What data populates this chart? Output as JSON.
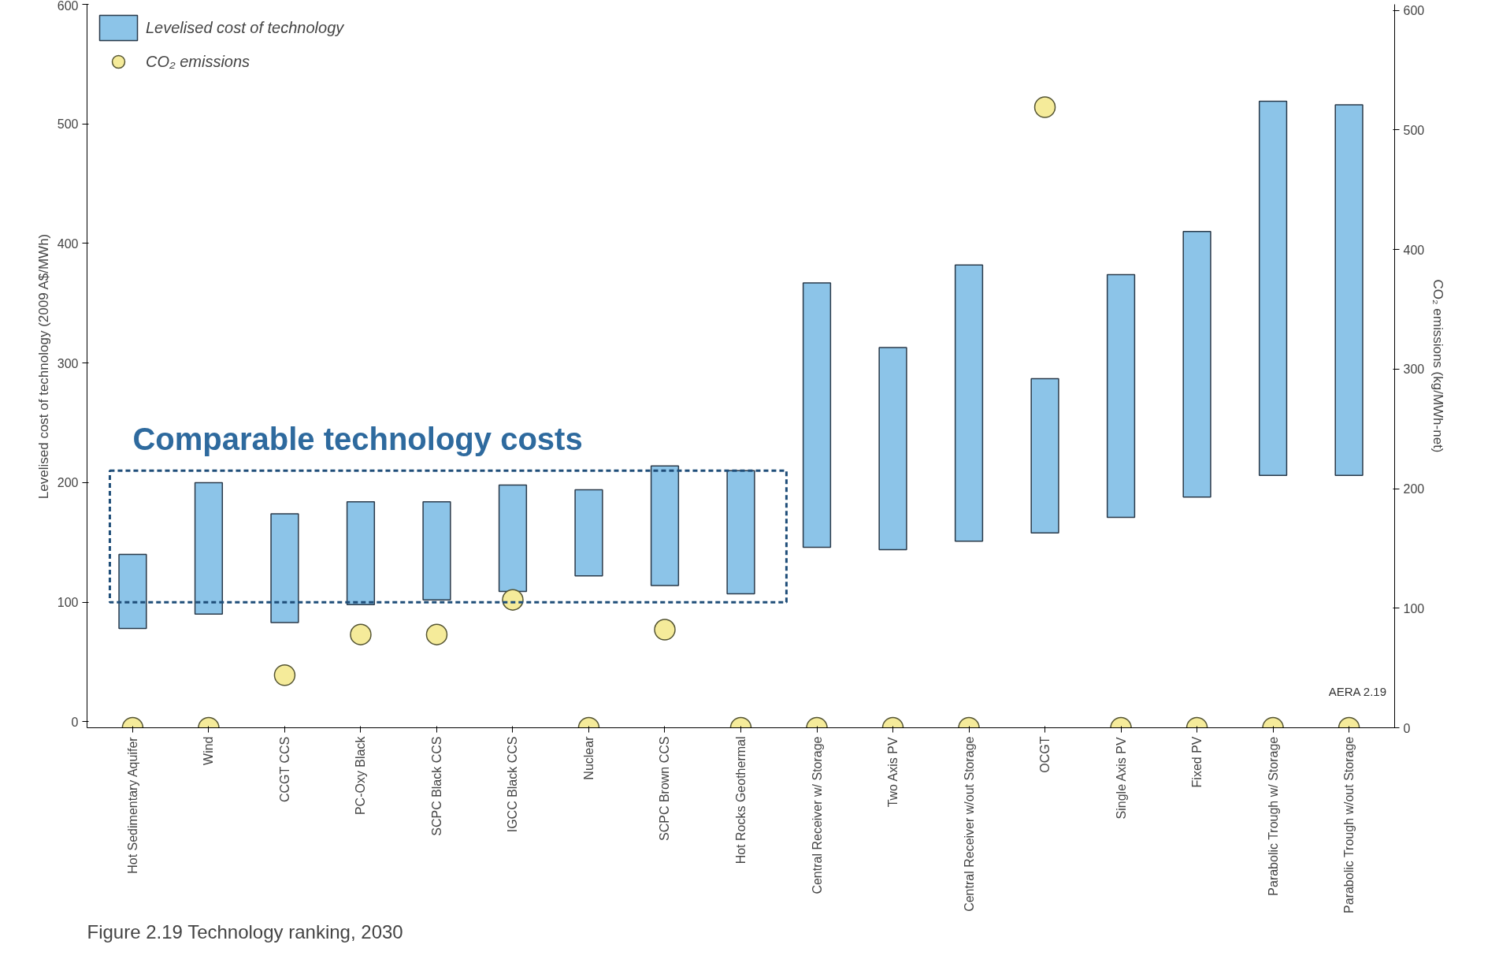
{
  "chart_data": {
    "type": "bar",
    "title": "Figure 2.19 Technology ranking, 2030",
    "ylabel": "Levelised cost of technology (2009 A$/MWh)",
    "y2label": "CO₂ emissions (kg/MWh-net)",
    "categories": [
      "Hot Sedimentary Aquifer",
      "Wind",
      "CCGT CCS",
      "PC-Oxy Black",
      "SCPC Black CCS",
      "IGCC Black CCS",
      "Nuclear",
      "SCPC Brown CCS",
      "Hot Rocks Geothermal",
      "Central Receiver w/ Storage",
      "Two Axis PV",
      "Central Receiver w/out Storage",
      "OCGT",
      "Single Axis PV",
      "Fixed PV",
      "Parabolic Trough w/ Storage",
      "Parabolic Trough w/out Storage"
    ],
    "series": [
      {
        "name": "Levelised cost of technology",
        "color": "#8cc4e8",
        "base": [
          78,
          90,
          83,
          98,
          102,
          109,
          122,
          114,
          107,
          146,
          144,
          151,
          158,
          171,
          188,
          206,
          206
        ],
        "values": [
          62,
          110,
          91,
          86,
          82,
          89,
          72,
          100,
          103,
          221,
          169,
          231,
          129,
          203,
          222,
          313,
          310
        ]
      },
      {
        "name": "CO₂ emissions",
        "type": "scatter",
        "axis": "y2",
        "color": "#f5eb9a",
        "values": [
          0,
          0,
          44,
          78,
          78,
          107,
          0,
          82,
          0,
          0,
          0,
          0,
          519,
          0,
          0,
          0,
          0
        ]
      }
    ],
    "ylim": [
      -5,
      600
    ],
    "yticks": [
      0,
      100,
      200,
      300,
      400,
      500,
      600
    ],
    "y2lim": [
      0,
      605
    ],
    "y2ticks": [
      0,
      100,
      200,
      300,
      400,
      500,
      600
    ],
    "legend": "top left",
    "marker": "circle",
    "grid": false,
    "annotations": [
      "Comparable technology costs",
      "AERA 2.19"
    ]
  }
}
